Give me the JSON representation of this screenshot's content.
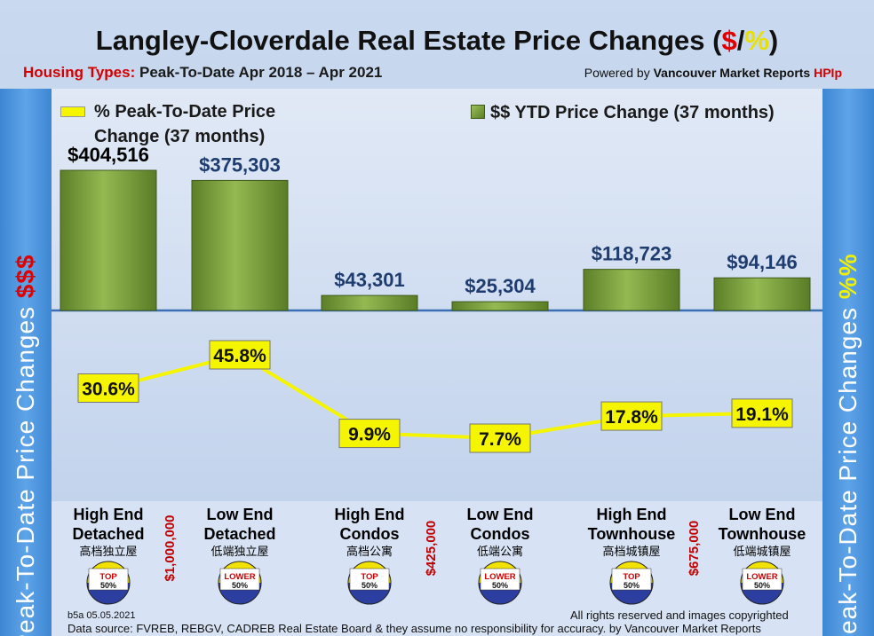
{
  "header": {
    "title_main": "Langley-Cloverdale Real Estate Price Changes (",
    "title_dollar": "$",
    "title_slash": "/",
    "title_pct": "%",
    "title_close": ")",
    "housing_label": "Housing Types:",
    "period": "Peak-To-Date Apr 2018 – Apr 2021",
    "powered_prefix": "Powered by",
    "powered_brand": "Vancouver Market Reports",
    "powered_hpi": "HPIp"
  },
  "sidebars": {
    "left_text": "Peak-To-Date Price Changes",
    "left_accent": "$$$",
    "right_text": "Peak-To-Date  Price  Changes",
    "right_accent": "%%"
  },
  "legend": {
    "line_label": "% Peak-To-Date Price Change (37 months)",
    "bar_label": "$$ YTD Price Change (37 months)"
  },
  "chart_data": {
    "type": "bar",
    "categories": [
      "High End Detached",
      "Low End Detached",
      "High End Condos",
      "Low End Condos",
      "High End Townhouse",
      "Low End Townhouse"
    ],
    "category_lines": [
      [
        "High End",
        "Detached"
      ],
      [
        "Low End",
        "Detached"
      ],
      [
        "High End",
        "Condos"
      ],
      [
        "Low End",
        "Condos"
      ],
      [
        "High End",
        "Townhouse"
      ],
      [
        "Low End",
        "Townhouse"
      ]
    ],
    "chinese_labels": [
      "高档独立屋",
      "低端独立屋",
      "高档公寓",
      "低端公寓",
      "高档城镇屋",
      "低端城镇屋"
    ],
    "series": [
      {
        "name": "$$ YTD Price Change (37 months)",
        "type": "bar",
        "values": [
          404516,
          375303,
          43301,
          25304,
          118723,
          94146
        ],
        "labels": [
          "$404,516",
          "$375,303",
          "$43,301",
          "$25,304",
          "$118,723",
          "$94,146"
        ]
      },
      {
        "name": "% Peak-To-Date Price Change (37 months)",
        "type": "line",
        "values": [
          30.6,
          45.8,
          9.9,
          7.7,
          17.8,
          19.1
        ],
        "labels": [
          "30.6%",
          "45.8%",
          "9.9%",
          "7.7%",
          "17.8%",
          "19.1%"
        ]
      }
    ],
    "thresholds": [
      "$1,000,000",
      "$425,000",
      "$675,000"
    ],
    "badges": [
      [
        "TOP",
        "50%"
      ],
      [
        "LOWER",
        "50%"
      ],
      [
        "TOP",
        "50%"
      ],
      [
        "LOWER",
        "50%"
      ],
      [
        "TOP",
        "50%"
      ],
      [
        "LOWER",
        "50%"
      ]
    ],
    "colors": {
      "bar": "#7ea03f",
      "line": "#f5f500",
      "axis": "#3a6fb5",
      "threshold": "#c00000"
    }
  },
  "footer": {
    "version": "b5a 05.05.2021",
    "rights": "All rights reserved and  images copyrighted",
    "source": "Data source: FVREB, REBGV, CADREB Real Estate Board & they assume no responsibility for accuracy. by Vancouver Market Reports"
  }
}
